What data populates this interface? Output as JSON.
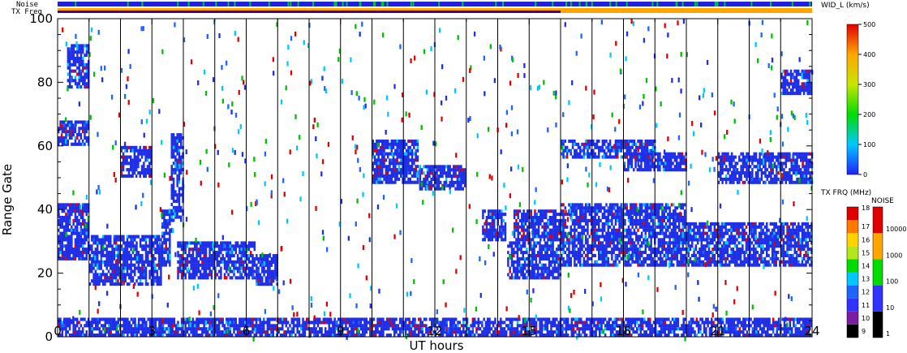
{
  "chart_data": {
    "type": "heatmap",
    "xlabel": "UT hours",
    "ylabel": "Range Gate",
    "xlim": [
      0,
      24
    ],
    "ylim": [
      0,
      100
    ],
    "x_ticks": [
      "0",
      "3",
      "6",
      "9",
      "12",
      "15",
      "18",
      "21",
      "24"
    ],
    "y_ticks": [
      "0",
      "20",
      "40",
      "60",
      "80",
      "100"
    ],
    "hour_lines": [
      1,
      2,
      3,
      4,
      5,
      6,
      7,
      8,
      9,
      10,
      11,
      12,
      13,
      14,
      15,
      16,
      17,
      18,
      19,
      20,
      21,
      22,
      23
    ],
    "top_bars": {
      "noise_label": "Noise",
      "txfreq_label": "TX Freq",
      "txfreq_change_hour": 16,
      "txfreq_before_color": "#4b0082",
      "txfreq_after_color": "#ffa500"
    },
    "width_colorbar": {
      "title": "WID_L (km/s)",
      "ticks": [
        "0",
        "100",
        "200",
        "300",
        "400",
        "500"
      ],
      "range": [
        0,
        500
      ]
    },
    "txfreq_colorbar": {
      "title": "TX FRQ (MHz)",
      "ticks": [
        "9",
        "10",
        "11",
        "12",
        "13",
        "14",
        "15",
        "16",
        "17",
        "18"
      ],
      "colors": [
        "#000000",
        "#7b1fa2",
        "#3232ff",
        "#1e64ff",
        "#00c8ff",
        "#00dc00",
        "#b4e61e",
        "#ffd200",
        "#ff7800",
        "#e00000"
      ]
    },
    "noise_colorbar": {
      "title": "NOISE",
      "ticks": [
        "1",
        "10",
        "100",
        "1000",
        "10000"
      ],
      "colors": [
        "#000000",
        "#3232ff",
        "#00dc00",
        "#ffa500",
        "#e00000"
      ]
    },
    "echo_bands": [
      {
        "x0": 0.0,
        "x1": 1.0,
        "y0": 24,
        "y1": 36
      },
      {
        "x0": 0.0,
        "x1": 1.0,
        "y0": 36,
        "y1": 42
      },
      {
        "x0": 1.0,
        "x1": 3.3,
        "y0": 16,
        "y1": 32
      },
      {
        "x0": 3.3,
        "x1": 3.6,
        "y0": 22,
        "y1": 40
      },
      {
        "x0": 3.6,
        "x1": 4.0,
        "y0": 36,
        "y1": 64
      },
      {
        "x0": 3.8,
        "x1": 6.3,
        "y0": 18,
        "y1": 30
      },
      {
        "x0": 6.3,
        "x1": 7.0,
        "y0": 16,
        "y1": 26
      },
      {
        "x0": 2.0,
        "x1": 3.0,
        "y0": 50,
        "y1": 60
      },
      {
        "x0": 0.0,
        "x1": 1.0,
        "y0": 60,
        "y1": 68
      },
      {
        "x0": 0.3,
        "x1": 1.0,
        "y0": 78,
        "y1": 92
      },
      {
        "x0": 10.0,
        "x1": 11.5,
        "y0": 48,
        "y1": 62
      },
      {
        "x0": 11.5,
        "x1": 13.0,
        "y0": 46,
        "y1": 54
      },
      {
        "x0": 13.5,
        "x1": 14.3,
        "y0": 30,
        "y1": 40
      },
      {
        "x0": 14.3,
        "x1": 16.0,
        "y0": 18,
        "y1": 30
      },
      {
        "x0": 14.5,
        "x1": 16.0,
        "y0": 30,
        "y1": 40
      },
      {
        "x0": 16.0,
        "x1": 24.0,
        "y0": 22,
        "y1": 36
      },
      {
        "x0": 16.0,
        "x1": 20.0,
        "y0": 36,
        "y1": 42
      },
      {
        "x0": 16.0,
        "x1": 19.0,
        "y0": 56,
        "y1": 62
      },
      {
        "x0": 18.0,
        "x1": 20.0,
        "y0": 52,
        "y1": 58
      },
      {
        "x0": 21.0,
        "x1": 24.0,
        "y0": 48,
        "y1": 58
      },
      {
        "x0": 23.0,
        "x1": 24.0,
        "y0": 76,
        "y1": 84
      },
      {
        "x0": 0.0,
        "x1": 24.0,
        "y0": 0,
        "y1": 6
      }
    ]
  }
}
